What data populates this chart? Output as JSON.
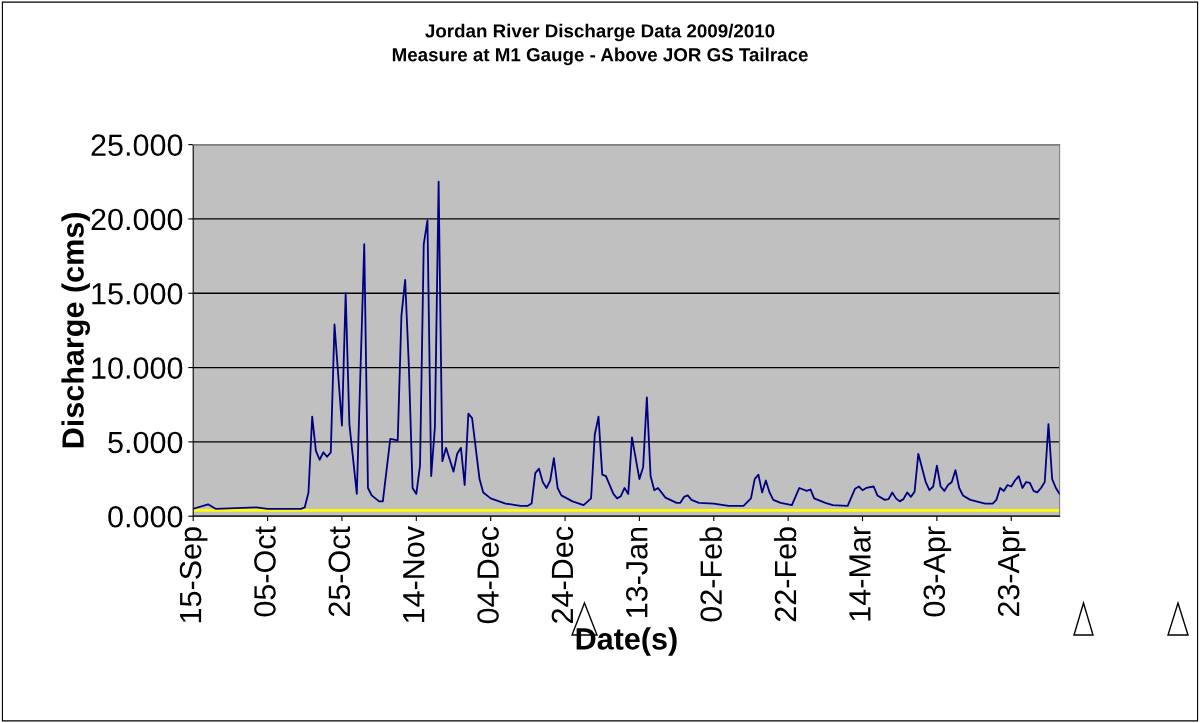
{
  "chart_data": {
    "type": "line",
    "title": "Jordan River Discharge Data 2009/2010",
    "subtitle": "Measure at M1 Gauge - Above JOR GS Tailrace",
    "xlabel": "Date(s)",
    "ylabel": "Discharge (cms)",
    "x": [
      "2009-09-15",
      "2009-09-19",
      "2009-09-21",
      "2009-10-02",
      "2009-10-05",
      "2009-10-14",
      "2009-10-15",
      "2009-10-16",
      "2009-10-17",
      "2009-10-18",
      "2009-10-19",
      "2009-10-20",
      "2009-10-21",
      "2009-10-22",
      "2009-10-23",
      "2009-10-25",
      "2009-10-26",
      "2009-10-27",
      "2009-10-29",
      "2009-10-31",
      "2009-11-01",
      "2009-11-02",
      "2009-11-04",
      "2009-11-05",
      "2009-11-07",
      "2009-11-09",
      "2009-11-10",
      "2009-11-11",
      "2009-11-12",
      "2009-11-13",
      "2009-11-14",
      "2009-11-15",
      "2009-11-16",
      "2009-11-17",
      "2009-11-18",
      "2009-11-19",
      "2009-11-20",
      "2009-11-21",
      "2009-11-22",
      "2009-11-24",
      "2009-11-25",
      "2009-11-26",
      "2009-11-27",
      "2009-11-28",
      "2009-11-29",
      "2009-12-01",
      "2009-12-02",
      "2009-12-04",
      "2009-12-08",
      "2009-12-12",
      "2009-12-14",
      "2009-12-15",
      "2009-12-16",
      "2009-12-17",
      "2009-12-18",
      "2009-12-19",
      "2009-12-20",
      "2009-12-21",
      "2009-12-22",
      "2009-12-23",
      "2009-12-26",
      "2009-12-29",
      "2009-12-31",
      "2010-01-01",
      "2010-01-02",
      "2010-01-03",
      "2010-01-04",
      "2010-01-06",
      "2010-01-07",
      "2010-01-08",
      "2010-01-09",
      "2010-01-10",
      "2010-01-11",
      "2010-01-13",
      "2010-01-14",
      "2010-01-15",
      "2010-01-16",
      "2010-01-17",
      "2010-01-18",
      "2010-01-20",
      "2010-01-23",
      "2010-01-24",
      "2010-01-25",
      "2010-01-26",
      "2010-01-27",
      "2010-01-29",
      "2010-02-02",
      "2010-02-06",
      "2010-02-10",
      "2010-02-12",
      "2010-02-13",
      "2010-02-14",
      "2010-02-15",
      "2010-02-16",
      "2010-02-17",
      "2010-02-18",
      "2010-02-20",
      "2010-02-23",
      "2010-02-25",
      "2010-02-27",
      "2010-02-28",
      "2010-03-01",
      "2010-03-04",
      "2010-03-06",
      "2010-03-10",
      "2010-03-12",
      "2010-03-13",
      "2010-03-14",
      "2010-03-15",
      "2010-03-17",
      "2010-03-18",
      "2010-03-20",
      "2010-03-21",
      "2010-03-22",
      "2010-03-23",
      "2010-03-24",
      "2010-03-25",
      "2010-03-26",
      "2010-03-27",
      "2010-03-28",
      "2010-03-29",
      "2010-03-31",
      "2010-04-01",
      "2010-04-02",
      "2010-04-03",
      "2010-04-04",
      "2010-04-05",
      "2010-04-06",
      "2010-04-07",
      "2010-04-08",
      "2010-04-09",
      "2010-04-10",
      "2010-04-12",
      "2010-04-16",
      "2010-04-18",
      "2010-04-19",
      "2010-04-20",
      "2010-04-21",
      "2010-04-22",
      "2010-04-23",
      "2010-04-24",
      "2010-04-25",
      "2010-04-26",
      "2010-04-27",
      "2010-04-28",
      "2010-04-29",
      "2010-04-30",
      "2010-05-01",
      "2010-05-02",
      "2010-05-03",
      "2010-05-04",
      "2010-05-05",
      "2010-05-06"
    ],
    "series": [
      {
        "color": "#000080",
        "values": [
          0.5,
          0.8,
          0.5,
          0.6,
          0.5,
          0.5,
          0.6,
          1.6,
          6.7,
          4.4,
          3.8,
          4.3,
          4.0,
          4.3,
          12.9,
          6.1,
          15.0,
          6.2,
          1.5,
          18.3,
          1.9,
          1.4,
          1.0,
          1.0,
          5.2,
          5.1,
          13.5,
          15.9,
          10.1,
          1.9,
          1.5,
          3.4,
          18.3,
          19.9,
          2.7,
          6.0,
          22.5,
          3.7,
          4.6,
          3.0,
          4.2,
          4.6,
          2.1,
          6.9,
          6.6,
          2.5,
          1.6,
          1.2,
          0.85,
          0.7,
          0.7,
          0.85,
          2.9,
          3.2,
          2.3,
          1.9,
          2.4,
          3.9,
          1.9,
          1.4,
          1.0,
          0.75,
          1.2,
          5.5,
          6.7,
          2.8,
          2.7,
          1.5,
          1.2,
          1.35,
          1.9,
          1.5,
          5.3,
          2.5,
          3.3,
          8.0,
          2.7,
          1.75,
          1.9,
          1.25,
          0.9,
          0.9,
          1.3,
          1.4,
          1.1,
          0.9,
          0.85,
          0.7,
          0.7,
          1.2,
          2.5,
          2.8,
          1.6,
          2.4,
          1.6,
          1.1,
          0.9,
          0.75,
          1.9,
          1.7,
          1.8,
          1.2,
          0.9,
          0.75,
          0.7,
          1.85,
          2.0,
          1.75,
          1.9,
          2.0,
          1.4,
          1.1,
          1.15,
          1.6,
          1.2,
          1.0,
          1.15,
          1.6,
          1.3,
          1.65,
          4.2,
          2.3,
          1.75,
          2.0,
          3.4,
          2.0,
          1.7,
          2.1,
          2.3,
          3.1,
          1.9,
          1.4,
          1.1,
          0.85,
          0.85,
          1.1,
          1.9,
          1.7,
          2.1,
          2.0,
          2.4,
          2.7,
          1.9,
          2.3,
          2.25,
          1.7,
          1.6,
          1.9,
          2.3,
          6.2,
          2.5,
          1.9,
          1.5
        ]
      }
    ],
    "xlim": [
      "2009-09-15",
      "2010-05-06"
    ],
    "xticks": [
      {
        "value": "2009-09-15",
        "label": "15-Sep"
      },
      {
        "value": "2009-10-05",
        "label": "05-Oct"
      },
      {
        "value": "2009-10-25",
        "label": "25-Oct"
      },
      {
        "value": "2009-11-14",
        "label": "14-Nov"
      },
      {
        "value": "2009-12-04",
        "label": "04-Dec"
      },
      {
        "value": "2009-12-24",
        "label": "24-Dec"
      },
      {
        "value": "2010-01-13",
        "label": "13-Jan"
      },
      {
        "value": "2010-02-02",
        "label": "02-Feb"
      },
      {
        "value": "2010-02-22",
        "label": "22-Feb"
      },
      {
        "value": "2010-03-14",
        "label": "14-Mar"
      },
      {
        "value": "2010-04-03",
        "label": "03-Apr"
      },
      {
        "value": "2010-04-23",
        "label": "23-Apr"
      }
    ],
    "ylim": [
      0,
      25
    ],
    "yticks": [
      {
        "value": 0,
        "label": "0.000"
      },
      {
        "value": 5,
        "label": "5.000"
      },
      {
        "value": 10,
        "label": "10.000"
      },
      {
        "value": 15,
        "label": "15.000"
      },
      {
        "value": 20,
        "label": "20.000"
      },
      {
        "value": 25,
        "label": "25.000"
      }
    ],
    "ref_lines": [
      {
        "axis": "y",
        "value": 0.4,
        "color": "#ffff00"
      }
    ],
    "grid": "y",
    "legend": false,
    "marker": "none",
    "line_style": "solid"
  }
}
